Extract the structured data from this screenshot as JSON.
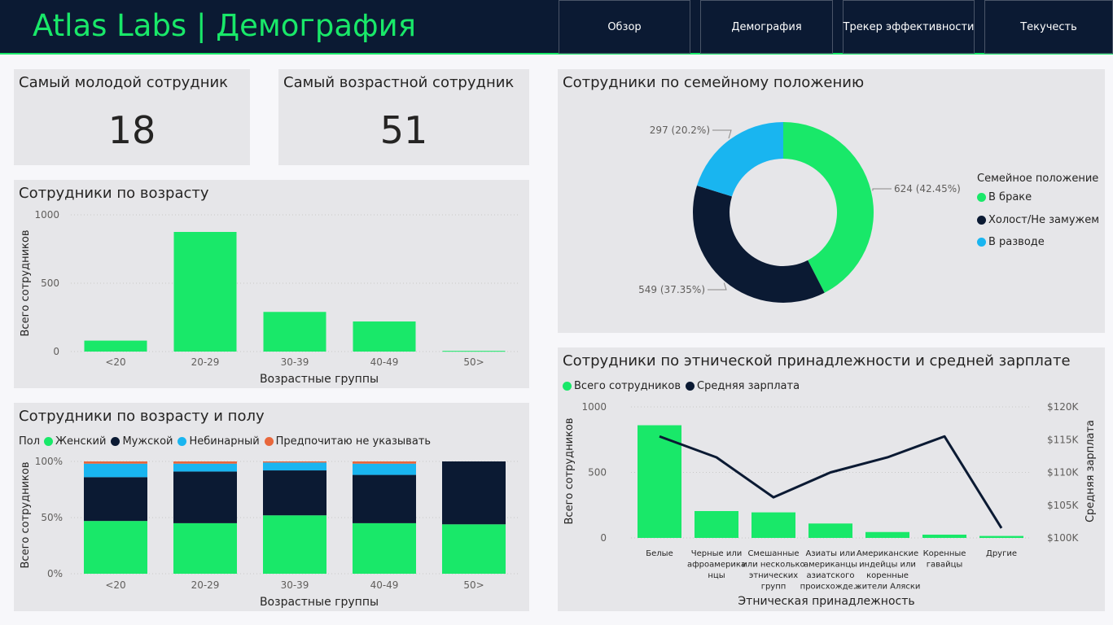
{
  "header": {
    "brand": "Atlas Labs | Демография",
    "nav": [
      {
        "label": "Обзор"
      },
      {
        "label": "Демография"
      },
      {
        "label": "Трекер эффективности"
      },
      {
        "label": "Текучесть"
      }
    ]
  },
  "kpis": {
    "youngest": {
      "title": "Самый молодой сотрудник",
      "value": "18"
    },
    "oldest": {
      "title": "Самый возрастной сотрудник",
      "value": "51"
    }
  },
  "colors": {
    "green": "#19e869",
    "navy": "#0b1a33",
    "blue": "#19b5f0",
    "orange": "#e8673c",
    "background": "#e6e6e9"
  },
  "age_chart": {
    "title": "Сотрудники по возрасту",
    "chart_data": {
      "type": "bar",
      "categories": [
        "<20",
        "20-29",
        "30-39",
        "40-49",
        "50>"
      ],
      "values": [
        80,
        875,
        290,
        220,
        5
      ],
      "xlabel": "Возрастные группы",
      "ylabel": "Всего сотрудников",
      "yticks": [
        "0",
        "500",
        "1000"
      ],
      "ylim": [
        0,
        1000
      ],
      "grid": true
    }
  },
  "gender_chart": {
    "title": "Сотрудники по возрасту и полу",
    "legend_title": "Пол",
    "chart_data": {
      "type": "bar",
      "stacked": "100%",
      "categories": [
        "<20",
        "20-29",
        "30-39",
        "40-49",
        "50>"
      ],
      "series": [
        {
          "name": "Женский",
          "values": [
            47,
            45,
            52,
            45,
            44
          ]
        },
        {
          "name": "Мужской",
          "values": [
            39,
            46,
            40,
            43,
            56
          ]
        },
        {
          "name": "Небинарный",
          "values": [
            12,
            7,
            7,
            10,
            0
          ]
        },
        {
          "name": "Предпочитаю не указывать",
          "values": [
            2,
            2,
            1,
            2,
            0
          ]
        }
      ],
      "xlabel": "Возрастные группы",
      "ylabel": "Всего сотрудников",
      "yticks": [
        "0%",
        "50%",
        "100%"
      ],
      "ylim": [
        0,
        100
      ]
    }
  },
  "marital_chart": {
    "title": "Сотрудники по семейному положению",
    "legend_title": "Семейное положение",
    "chart_data": {
      "type": "pie",
      "donut": true,
      "categories": [
        "В браке",
        "Холост/Не замужем",
        "В разводе"
      ],
      "values": [
        624,
        549,
        297
      ],
      "labels": [
        "624 (42.45%)",
        "549 (37.35%)",
        "297 (20.2%)"
      ],
      "legend": "right"
    }
  },
  "ethnicity_chart": {
    "title": "Сотрудники по этнической принадлежности и средней зарплате",
    "chart_data": {
      "type": "bar",
      "combo": "bar+line",
      "categories": [
        [
          "Белые"
        ],
        [
          "Черные или",
          "афроамерика",
          "нцы"
        ],
        [
          "Смешанные",
          "или несколько",
          "этнических",
          "групп"
        ],
        [
          "Азиаты или",
          "американцы",
          "азиатского",
          "происхожде..."
        ],
        [
          "Американские",
          "индейцы или",
          "коренные",
          "жители Аляски"
        ],
        [
          "Коренные",
          "гавайцы"
        ],
        [
          "Другие"
        ]
      ],
      "series": [
        {
          "name": "Всего сотрудников",
          "type": "bar",
          "axis": "left",
          "values": [
            860,
            205,
            195,
            110,
            45,
            25,
            15
          ]
        },
        {
          "name": "Средняя зарплата",
          "type": "line",
          "axis": "right",
          "values": [
            115500,
            112300,
            106200,
            110000,
            112300,
            115500,
            101500
          ]
        }
      ],
      "xlabel": "Этническая принадлежность",
      "ylabel": "Всего сотрудников",
      "ylabel_right": "Средняя зарплата",
      "yticks": [
        "0",
        "500",
        "1000"
      ],
      "yticks_right": [
        "$100K",
        "$105K",
        "$110K",
        "$115K",
        "$120K"
      ],
      "ylim": [
        0,
        1000
      ],
      "ylim_right": [
        100000,
        120000
      ],
      "legend": "top-left"
    }
  }
}
